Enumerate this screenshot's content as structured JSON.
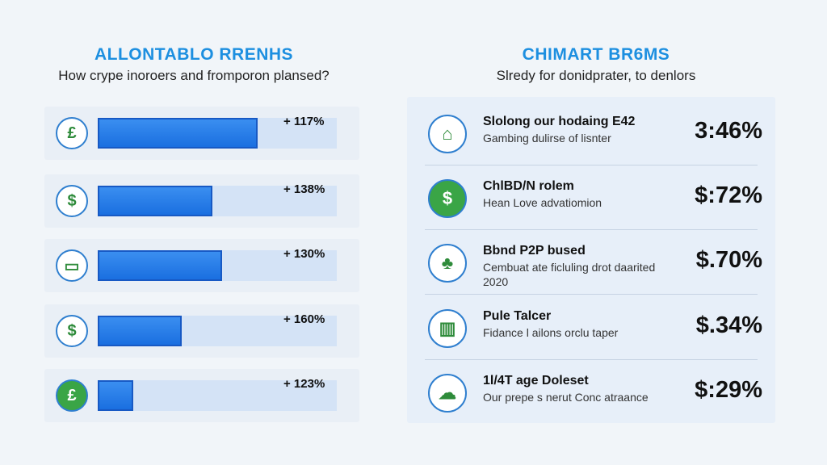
{
  "left_panel": {
    "title": "ALLONTABLO RRENHS",
    "subtitle": "How crype inoroers and fromporon plansed?"
  },
  "right_panel": {
    "title": "CHIMART BR6MS",
    "subtitle": "Slredy for donidprater, to denlors"
  },
  "chart_data": [
    {
      "type": "bar",
      "orientation": "horizontal",
      "categories": [
        "",
        "",
        "",
        "",
        ""
      ],
      "values": [
        117,
        138,
        130,
        160,
        123
      ],
      "labels": [
        "+ 117%",
        "+ 138%",
        "+ 130%",
        "+ 160%",
        "+ 123%"
      ],
      "fill_fractions": [
        0.67,
        0.48,
        0.52,
        0.35,
        0.15
      ],
      "icons": [
        "money-stack-icon",
        "dollar-icon",
        "cash-note-icon",
        "dollar-icon",
        "money-hand-icon"
      ],
      "title": "ALLONTABLO RRENHS",
      "subtitle": "How crype inoroers and fromporon plansed?"
    },
    {
      "type": "table",
      "rows": [
        {
          "title": "Slolong our hodaing E42",
          "desc": "Gambing dulirse of lisnter",
          "value": "3:46%",
          "icon": "bank-icon"
        },
        {
          "title": "ChlBD/N rolem",
          "desc": "Hean Love advatiomion",
          "value": "$:72%",
          "icon": "money-bag-icon"
        },
        {
          "title": "Bbnd P2P bused",
          "desc": "Cembuat ate ficluling drot daarited 2020",
          "value": "$.70%",
          "icon": "plant-icon"
        },
        {
          "title": "Pule Talcer",
          "desc": "Fidance l ailons orclu taper",
          "value": "$.34%",
          "icon": "growth-chart-icon"
        },
        {
          "title": "1l/4T age Doleset",
          "desc": "Our prepe s nerut Conc atraance",
          "value": "$:29%",
          "icon": "cloud-coins-icon"
        }
      ]
    }
  ]
}
